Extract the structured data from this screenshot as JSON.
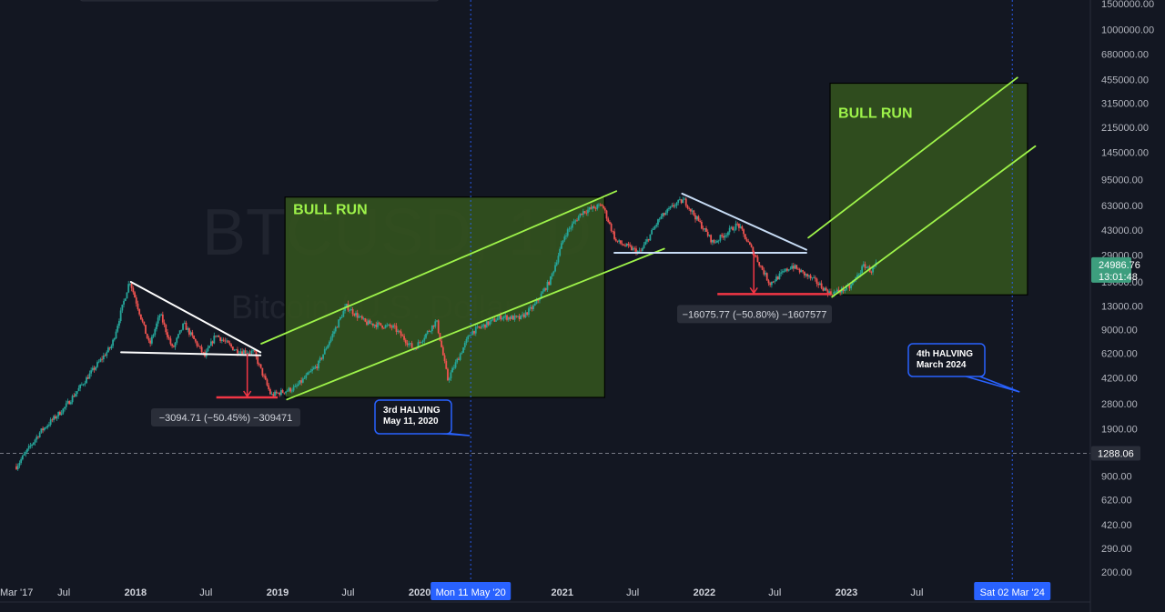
{
  "watermark": {
    "symbol": "BTCUSD, 1D",
    "name": "Bitcoin / U.S. Dollar"
  },
  "colors": {
    "background": "#131722",
    "candle_up": "#26a69a",
    "candle_down": "#ef5350",
    "box_fill": "#33521e",
    "channel": "#9ef34a",
    "triangle_2018": "#ffffff",
    "triangle_2022": "#c7dcf5",
    "drop_marker": "#f23645",
    "halving_line": "#2962ff",
    "price_tag": "#3d9e7e",
    "date_tag": "#2962ff"
  },
  "chart_data": {
    "type": "candlestick",
    "scale": "log",
    "title": "BTCUSD, 1D",
    "subtitle": "Bitcoin / U.S. Dollar",
    "y_ticks": [
      "1500000.00",
      "1000000.00",
      "680000.00",
      "455000.00",
      "315000.00",
      "215000.00",
      "145000.00",
      "95000.00",
      "63000.00",
      "43000.00",
      "29000.00",
      "19000.00",
      "13000.00",
      "9000.00",
      "6200.00",
      "4200.00",
      "2800.00",
      "1900.00",
      "1288.06",
      "900.00",
      "620.00",
      "420.00",
      "290.00",
      "200.00"
    ],
    "x_ticks": [
      {
        "label": "Mar '17",
        "date": "2017-03-01",
        "bold": false
      },
      {
        "label": "Jul",
        "date": "2017-07-01",
        "bold": false
      },
      {
        "label": "2018",
        "date": "2018-01-01",
        "bold": true
      },
      {
        "label": "Jul",
        "date": "2018-07-01",
        "bold": false
      },
      {
        "label": "2019",
        "date": "2019-01-01",
        "bold": true
      },
      {
        "label": "Jul",
        "date": "2019-07-01",
        "bold": false
      },
      {
        "label": "2020",
        "date": "2020-01-01",
        "bold": true
      },
      {
        "label": "2021",
        "date": "2021-01-01",
        "bold": true
      },
      {
        "label": "Jul",
        "date": "2021-07-01",
        "bold": false
      },
      {
        "label": "2022",
        "date": "2022-01-01",
        "bold": true
      },
      {
        "label": "Jul",
        "date": "2022-07-01",
        "bold": false
      },
      {
        "label": "2023",
        "date": "2023-01-01",
        "bold": true
      },
      {
        "label": "Jul",
        "date": "2023-07-01",
        "bold": false
      }
    ],
    "price_series": [
      {
        "date": "2017-03-01",
        "price": 1050
      },
      {
        "date": "2017-05-01",
        "price": 1800
      },
      {
        "date": "2017-07-01",
        "price": 2600
      },
      {
        "date": "2017-09-01",
        "price": 4300
      },
      {
        "date": "2017-11-01",
        "price": 7000
      },
      {
        "date": "2017-12-17",
        "price": 19500
      },
      {
        "date": "2018-02-06",
        "price": 7000
      },
      {
        "date": "2018-03-05",
        "price": 11500
      },
      {
        "date": "2018-04-06",
        "price": 6600
      },
      {
        "date": "2018-05-05",
        "price": 9800
      },
      {
        "date": "2018-06-28",
        "price": 5900
      },
      {
        "date": "2018-07-26",
        "price": 8300
      },
      {
        "date": "2018-09-15",
        "price": 6500
      },
      {
        "date": "2018-11-01",
        "price": 6300
      },
      {
        "date": "2018-12-15",
        "price": 3200
      },
      {
        "date": "2019-02-15",
        "price": 3600
      },
      {
        "date": "2019-04-15",
        "price": 5200
      },
      {
        "date": "2019-06-26",
        "price": 13000
      },
      {
        "date": "2019-08-15",
        "price": 10000
      },
      {
        "date": "2019-10-26",
        "price": 9300
      },
      {
        "date": "2019-12-17",
        "price": 6600
      },
      {
        "date": "2020-02-13",
        "price": 10300
      },
      {
        "date": "2020-03-13",
        "price": 4100
      },
      {
        "date": "2020-05-11",
        "price": 8600
      },
      {
        "date": "2020-07-27",
        "price": 11000
      },
      {
        "date": "2020-09-15",
        "price": 10700
      },
      {
        "date": "2020-10-21",
        "price": 13000
      },
      {
        "date": "2020-12-01",
        "price": 19500
      },
      {
        "date": "2021-01-08",
        "price": 40000
      },
      {
        "date": "2021-02-21",
        "price": 57000
      },
      {
        "date": "2021-04-14",
        "price": 63500
      },
      {
        "date": "2021-05-19",
        "price": 36000
      },
      {
        "date": "2021-07-20",
        "price": 30000
      },
      {
        "date": "2021-09-07",
        "price": 51000
      },
      {
        "date": "2021-10-20",
        "price": 65000
      },
      {
        "date": "2021-11-10",
        "price": 68500
      },
      {
        "date": "2022-01-24",
        "price": 35000
      },
      {
        "date": "2022-03-28",
        "price": 47000
      },
      {
        "date": "2022-05-12",
        "price": 28500
      },
      {
        "date": "2022-06-18",
        "price": 18500
      },
      {
        "date": "2022-08-14",
        "price": 24500
      },
      {
        "date": "2022-10-15",
        "price": 19000
      },
      {
        "date": "2022-11-21",
        "price": 15700
      },
      {
        "date": "2023-01-10",
        "price": 17500
      },
      {
        "date": "2023-02-16",
        "price": 24800
      },
      {
        "date": "2023-03-05",
        "price": 22500
      },
      {
        "date": "2023-03-18",
        "price": 24986.76
      }
    ],
    "last_price": "24986.76",
    "countdown": "13:01:48",
    "reference_price": "1288.06"
  },
  "annotations": {
    "bull_run_label": "BULL RUN",
    "bull_boxes": [
      {
        "name": "bull-run-box-2019-2021",
        "start": "2019-01-20",
        "end": "2021-04-20",
        "low": 3100,
        "high": 72000
      },
      {
        "name": "bull-run-box-2023",
        "start": "2022-11-20",
        "end": "2024-04-10",
        "low": 15500,
        "high": 430000
      }
    ],
    "measures": [
      {
        "name": "drop-2018",
        "text": "−3094.71 (−50.45%) −309471",
        "start": "2018-10-01",
        "end": "2019-01-01",
        "top": 6200,
        "bottom": 3100
      },
      {
        "name": "drop-2022",
        "text": "−16075.77 (−50.80%) −1607577",
        "start": "2022-04-10",
        "end": "2022-11-20",
        "top": 31000,
        "bottom": 15700
      }
    ],
    "halving_3": {
      "line1": "3rd HALVING",
      "line2": "May 11, 2020",
      "date": "2020-05-11",
      "date_tag": "Mon 11 May '20"
    },
    "halving_4": {
      "line1": "4th HALVING",
      "line2": "March 2024",
      "date": "2024-03-02",
      "date_tag": "Sat 02 Mar '24"
    }
  }
}
